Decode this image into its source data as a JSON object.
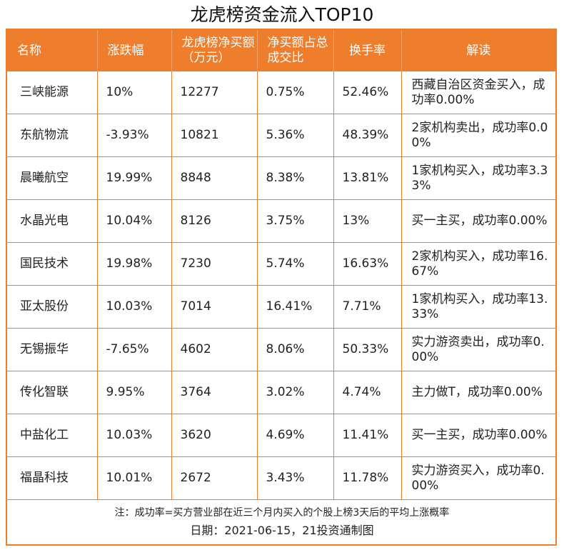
{
  "title": "龙虎榜资金流入TOP10",
  "headers": {
    "name": "名称",
    "change": "涨跌幅",
    "net_buy": "龙虎榜净买额（万元）",
    "net_ratio": "净买额占总成交比",
    "turnover": "换手率",
    "note": "解读"
  },
  "rows": [
    {
      "name": "三峡能源",
      "change": "10%",
      "net_buy": "12277",
      "net_ratio": "0.75%",
      "turnover": "52.46%",
      "note": "西藏自治区资金买入，成功率0.00%"
    },
    {
      "name": "东航物流",
      "change": "-3.93%",
      "net_buy": "10821",
      "net_ratio": "5.36%",
      "turnover": "48.39%",
      "note": "2家机构卖出，成功率0.00%"
    },
    {
      "name": "晨曦航空",
      "change": "19.99%",
      "net_buy": "8848",
      "net_ratio": "8.38%",
      "turnover": "13.81%",
      "note": "1家机构买入，成功率3.33%"
    },
    {
      "name": "水晶光电",
      "change": "10.04%",
      "net_buy": "8126",
      "net_ratio": "3.75%",
      "turnover": "13%",
      "note": "买一主买，成功率0.00%"
    },
    {
      "name": "国民技术",
      "change": "19.98%",
      "net_buy": "7230",
      "net_ratio": "5.74%",
      "turnover": "16.63%",
      "note": "2家机构买入，成功率16.67%"
    },
    {
      "name": "亚太股份",
      "change": "10.03%",
      "net_buy": "7014",
      "net_ratio": "16.41%",
      "turnover": "7.71%",
      "note": "1家机构买入，成功率13.33%"
    },
    {
      "name": "无锡振华",
      "change": "-7.65%",
      "net_buy": "4602",
      "net_ratio": "8.06%",
      "turnover": "50.33%",
      "note": "实力游资卖出，成功率0.00%"
    },
    {
      "name": "传化智联",
      "change": "9.95%",
      "net_buy": "3764",
      "net_ratio": "3.02%",
      "turnover": "4.74%",
      "note": "主力做T，成功率0.00%"
    },
    {
      "name": "中盐化工",
      "change": "10.03%",
      "net_buy": "3620",
      "net_ratio": "4.69%",
      "turnover": "11.41%",
      "note": "买一主买，成功率0.00%"
    },
    {
      "name": "福晶科技",
      "change": "10.01%",
      "net_buy": "2672",
      "net_ratio": "3.43%",
      "turnover": "11.78%",
      "note": "实力游资买入，成功率0.00%"
    }
  ],
  "footnote": "注：成功率=买方营业部在近三个月内买入的个股上榜3天后的平均上涨概率",
  "date_line": "日期：2021-06-15，21投资通制图",
  "colors": {
    "accent": "#ee7d2c",
    "header_text": "#ffffff"
  }
}
